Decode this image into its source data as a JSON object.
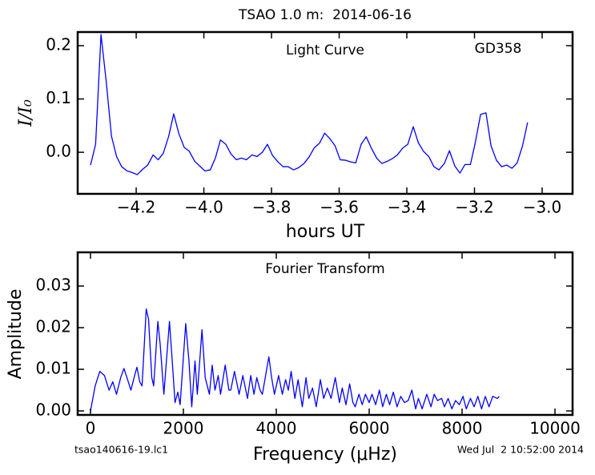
{
  "figure": {
    "title": "TSAO 1.0 m:  2014-06-16",
    "footer_left": "tsao140616-19.lc1",
    "footer_right": "Wed Jul  2 10:52:00 2014"
  },
  "chart_data": [
    {
      "type": "line",
      "annotations": [
        "Light Curve",
        "GD358"
      ],
      "x_label": "hours UT",
      "y_label": "I/I₀",
      "color": "#0000ff",
      "x": [
        -4.335,
        -4.32,
        -4.304,
        -4.289,
        -4.273,
        -4.258,
        -4.243,
        -4.227,
        -4.212,
        -4.197,
        -4.181,
        -4.166,
        -4.15,
        -4.135,
        -4.12,
        -4.104,
        -4.089,
        -4.074,
        -4.058,
        -4.043,
        -4.027,
        -4.012,
        -3.997,
        -3.981,
        -3.966,
        -3.951,
        -3.935,
        -3.92,
        -3.904,
        -3.889,
        -3.874,
        -3.858,
        -3.843,
        -3.827,
        -3.812,
        -3.797,
        -3.781,
        -3.766,
        -3.751,
        -3.735,
        -3.72,
        -3.704,
        -3.689,
        -3.674,
        -3.658,
        -3.643,
        -3.628,
        -3.612,
        -3.597,
        -3.581,
        -3.566,
        -3.551,
        -3.535,
        -3.52,
        -3.505,
        -3.489,
        -3.474,
        -3.458,
        -3.443,
        -3.428,
        -3.412,
        -3.397,
        -3.381,
        -3.366,
        -3.351,
        -3.335,
        -3.32,
        -3.305,
        -3.289,
        -3.274,
        -3.258,
        -3.243,
        -3.228,
        -3.212,
        -3.197,
        -3.182,
        -3.166,
        -3.151,
        -3.135,
        -3.12,
        -3.105,
        -3.089,
        -3.074,
        -3.058,
        -3.043
      ],
      "values": [
        -0.024,
        0.015,
        0.221,
        0.135,
        0.03,
        -0.008,
        -0.027,
        -0.035,
        -0.038,
        -0.042,
        -0.032,
        -0.024,
        -0.005,
        -0.014,
        -0.002,
        0.03,
        0.072,
        0.035,
        0.009,
        0.002,
        -0.017,
        -0.026,
        -0.035,
        -0.033,
        -0.011,
        0.023,
        0.015,
        -0.003,
        -0.014,
        -0.011,
        -0.014,
        -0.005,
        -0.008,
        0.0,
        0.015,
        -0.006,
        -0.018,
        -0.027,
        -0.027,
        -0.033,
        -0.029,
        -0.021,
        -0.009,
        0.008,
        0.017,
        0.036,
        0.026,
        0.012,
        -0.014,
        -0.015,
        -0.018,
        -0.02,
        0.015,
        0.029,
        0.008,
        -0.011,
        -0.021,
        -0.017,
        -0.012,
        -0.005,
        0.008,
        0.015,
        0.048,
        0.018,
        0.002,
        -0.008,
        -0.027,
        -0.033,
        -0.021,
        0.003,
        -0.026,
        -0.039,
        -0.023,
        -0.023,
        0.02,
        0.071,
        0.074,
        0.012,
        -0.015,
        -0.027,
        -0.024,
        -0.03,
        -0.02,
        0.012,
        0.056
      ],
      "xlim": [
        -4.373,
        -2.91
      ],
      "ylim": [
        -0.078,
        0.2256
      ],
      "xticks": [
        {
          "value": -4.2,
          "label": "−4.2"
        },
        {
          "value": -4.0,
          "label": "−4.0"
        },
        {
          "value": -3.8,
          "label": "−3.8"
        },
        {
          "value": -3.6,
          "label": "−3.6"
        },
        {
          "value": -3.4,
          "label": "−3.4"
        },
        {
          "value": -3.2,
          "label": "−3.2"
        },
        {
          "value": -3.0,
          "label": "−3.0"
        }
      ],
      "yticks": [
        {
          "value": 0,
          "label": "0.0"
        },
        0.1,
        0.2
      ],
      "grid": false
    },
    {
      "type": "line",
      "annotations": [
        "Fourier Transform"
      ],
      "x_label": "Frequency (μHz)",
      "y_label": "Amplitude",
      "color": "#0000ff",
      "x": [
        0,
        100,
        200,
        300,
        400,
        480,
        560,
        650,
        720,
        800,
        870,
        950,
        1000,
        1060,
        1110,
        1200,
        1250,
        1320,
        1360,
        1450,
        1500,
        1580,
        1700,
        1760,
        1820,
        1880,
        1930,
        2050,
        2120,
        2180,
        2250,
        2300,
        2400,
        2470,
        2560,
        2620,
        2680,
        2750,
        2800,
        2900,
        2980,
        3020,
        3100,
        3200,
        3280,
        3380,
        3450,
        3520,
        3580,
        3650,
        3700,
        3840,
        3900,
        3960,
        4050,
        4130,
        4200,
        4260,
        4320,
        4400,
        4470,
        4560,
        4640,
        4700,
        4780,
        4860,
        4950,
        5020,
        5100,
        5180,
        5270,
        5360,
        5420,
        5500,
        5580,
        5650,
        5700,
        5780,
        5850,
        5920,
        6000,
        6060,
        6140,
        6220,
        6290,
        6370,
        6440,
        6520,
        6600,
        6680,
        6760,
        6840,
        6920,
        7000,
        7060,
        7140,
        7240,
        7330,
        7400,
        7470,
        7560,
        7620,
        7700,
        7780,
        7860,
        7940,
        8020,
        8090,
        8180,
        8260,
        8340,
        8420,
        8500,
        8580,
        8660,
        8760,
        8800
      ],
      "values": [
        0,
        0.006,
        0.0095,
        0.0085,
        0.005,
        0.007,
        0.004,
        0.008,
        0.0102,
        0.0075,
        0.005,
        0.0085,
        0.0105,
        0.007,
        0.006,
        0.0245,
        0.022,
        0.008,
        0.006,
        0.0215,
        0.016,
        0.004,
        0.0215,
        0.012,
        0.002,
        0.0045,
        0.0015,
        0.021,
        0.012,
        0.001,
        0.012,
        0.004,
        0.0195,
        0.008,
        0.004,
        0.011,
        0.005,
        0.0085,
        0.004,
        0.011,
        0.005,
        0.005,
        0.0095,
        0.004,
        0.0085,
        0.003,
        0.0085,
        0.004,
        0.008,
        0.005,
        0.004,
        0.013,
        0.008,
        0.004,
        0.0085,
        0.004,
        0.0075,
        0.005,
        0.0095,
        0.003,
        0.0075,
        0.001,
        0.008,
        0.003,
        0.0055,
        0.001,
        0.0075,
        0.003,
        0.0055,
        0.003,
        0.008,
        0.002,
        0.0055,
        0.0015,
        0.0065,
        0.002,
        0.001,
        0.004,
        0.0015,
        0.004,
        0.002,
        0.004,
        0.0015,
        0.005,
        0.001,
        0.004,
        0.0015,
        0.0045,
        0.001,
        0.0035,
        0.002,
        0.0025,
        0.005,
        0.0005,
        0.003,
        0.0005,
        0.004,
        0.001,
        0.004,
        0.0025,
        0.003,
        0.001,
        0.003,
        0.0005,
        0.0025,
        0.0015,
        0.0035,
        0.0005,
        0.003,
        0.001,
        0.0035,
        0.0005,
        0.0035,
        0.001,
        0.0035,
        0.003,
        0.0035
      ],
      "xlim": [
        -276,
        10379
      ],
      "ylim": [
        -0.00096,
        0.0381
      ],
      "xticks": [
        0,
        2000,
        4000,
        6000,
        8000,
        10000
      ],
      "yticks": [
        {
          "value": 0,
          "label": "0.00"
        },
        0.01,
        0.02,
        0.03
      ],
      "grid": false
    }
  ]
}
